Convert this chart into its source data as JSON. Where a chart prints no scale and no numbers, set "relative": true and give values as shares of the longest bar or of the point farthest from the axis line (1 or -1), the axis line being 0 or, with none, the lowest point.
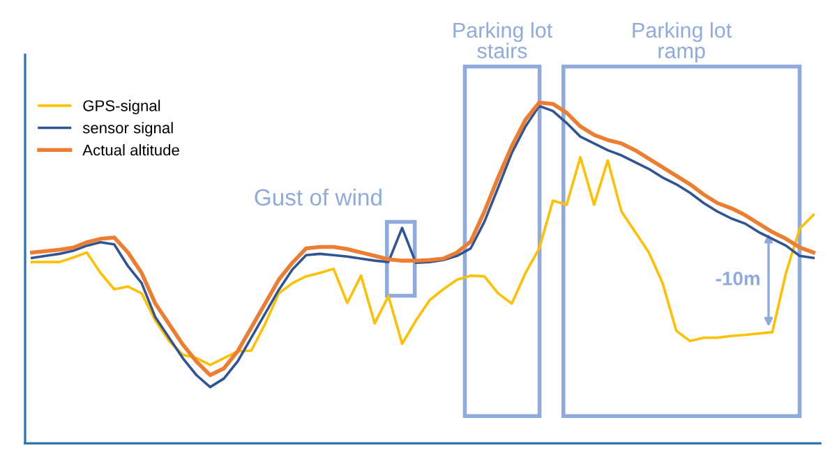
{
  "chart_data": {
    "type": "line",
    "relative": true,
    "legend": "top left",
    "categories": [
      null,
      null,
      null,
      null,
      null,
      null,
      null,
      null,
      null,
      null,
      null,
      null,
      null,
      null,
      null,
      null,
      null,
      null,
      null,
      null,
      null,
      null,
      null,
      null,
      null,
      null,
      null,
      null,
      null,
      null,
      null,
      null,
      null,
      null,
      null,
      null,
      null,
      null,
      null,
      null,
      null,
      null,
      null,
      null,
      null,
      null,
      null,
      null,
      null,
      null,
      null,
      null,
      null,
      null,
      null,
      null,
      null,
      null
    ],
    "series": [
      {
        "name": "GPS-signal",
        "color": "#ffc000",
        "values": [
          0.532,
          0.532,
          0.532,
          0.545,
          0.56,
          0.5,
          0.452,
          0.46,
          0.44,
          0.36,
          0.3,
          0.26,
          0.25,
          0.23,
          0.25,
          0.27,
          0.272,
          0.35,
          0.44,
          0.47,
          0.49,
          0.5,
          0.512,
          0.412,
          0.492,
          0.352,
          0.432,
          0.292,
          0.36,
          0.42,
          0.452,
          0.48,
          0.492,
          0.49,
          0.44,
          0.41,
          0.5,
          0.572,
          0.712,
          0.7,
          0.84,
          0.7,
          0.83,
          0.68,
          0.62,
          0.56,
          0.47,
          0.33,
          0.3,
          0.31,
          0.31,
          0.315,
          0.318,
          0.322,
          0.326,
          0.5,
          0.63,
          0.67
        ]
      },
      {
        "name": "sensor signal",
        "color": "#2f5597",
        "values": [
          0.544,
          0.55,
          0.556,
          0.565,
          0.58,
          0.59,
          0.584,
          0.52,
          0.47,
          0.37,
          0.31,
          0.25,
          0.2,
          0.165,
          0.19,
          0.24,
          0.31,
          0.38,
          0.45,
          0.51,
          0.552,
          0.556,
          0.552,
          0.548,
          0.542,
          0.536,
          0.532,
          0.632,
          0.53,
          0.532,
          0.538,
          0.55,
          0.572,
          0.65,
          0.75,
          0.852,
          0.93,
          0.99,
          0.975,
          0.94,
          0.9,
          0.88,
          0.86,
          0.845,
          0.825,
          0.805,
          0.78,
          0.76,
          0.735,
          0.705,
          0.68,
          0.66,
          0.645,
          0.62,
          0.6,
          0.58,
          0.55,
          0.544
        ]
      },
      {
        "name": "Actual altitude",
        "color": "#ed7d31",
        "values": [
          0.56,
          0.564,
          0.568,
          0.574,
          0.59,
          0.6,
          0.604,
          0.56,
          0.5,
          0.41,
          0.35,
          0.29,
          0.24,
          0.2,
          0.22,
          0.27,
          0.34,
          0.41,
          0.48,
          0.53,
          0.572,
          0.576,
          0.576,
          0.57,
          0.56,
          0.55,
          0.54,
          0.536,
          0.536,
          0.538,
          0.542,
          0.56,
          0.592,
          0.68,
          0.78,
          0.872,
          0.95,
          1,
          0.996,
          0.97,
          0.93,
          0.905,
          0.89,
          0.88,
          0.86,
          0.835,
          0.81,
          0.785,
          0.76,
          0.73,
          0.705,
          0.69,
          0.67,
          0.645,
          0.62,
          0.6,
          0.575,
          0.56
        ]
      }
    ],
    "annotations": [
      "Parking lot\nstairs",
      "Parking lot\nramp",
      "Gust of wind",
      "-10m"
    ]
  }
}
